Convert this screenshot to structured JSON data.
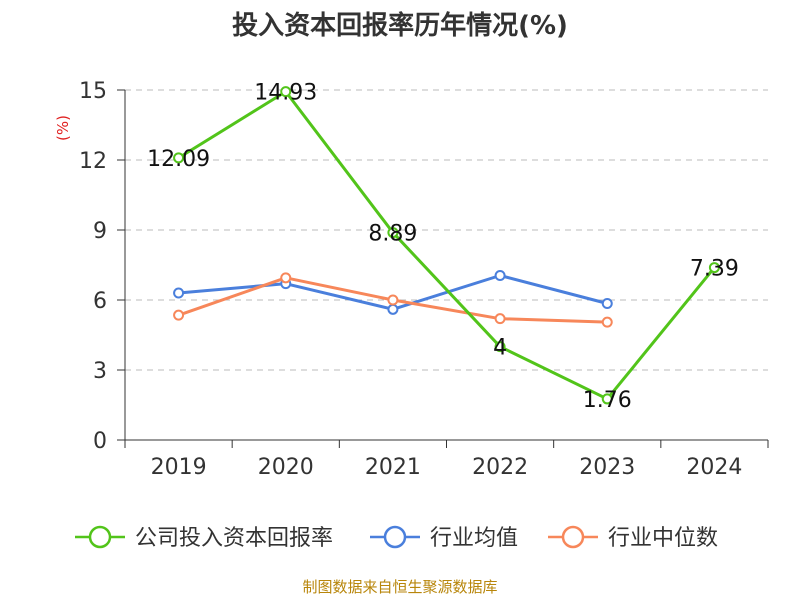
{
  "chart_data": {
    "type": "line",
    "title": "投入资本回报率历年情况(%)",
    "ylabel": "(%)",
    "xlabel": "",
    "categories": [
      "2019",
      "2020",
      "2021",
      "2022",
      "2023",
      "2024"
    ],
    "ylim": [
      0,
      15
    ],
    "yticks": [
      0,
      3,
      6,
      9,
      12,
      15
    ],
    "ytick_labels": [
      "0",
      "3",
      "6",
      "9",
      "12",
      "15"
    ],
    "grid": true,
    "series": [
      {
        "name": "公司投入资本回报率",
        "color": "#52c41a",
        "values": [
          12.09,
          14.93,
          8.89,
          4,
          1.76,
          7.39
        ],
        "labels": [
          "12.09",
          "14.93",
          "8.89",
          "4",
          "1.76",
          "7.39"
        ]
      },
      {
        "name": "行业均值",
        "color": "#4a7fdc",
        "values": [
          6.3,
          6.7,
          5.6,
          7.05,
          5.85,
          null
        ]
      },
      {
        "name": "行业中位数",
        "color": "#f7875a",
        "values": [
          5.35,
          6.95,
          6.0,
          5.2,
          5.05,
          null
        ]
      }
    ],
    "legend_position": "bottom",
    "source": "制图数据来自恒生聚源数据库"
  }
}
